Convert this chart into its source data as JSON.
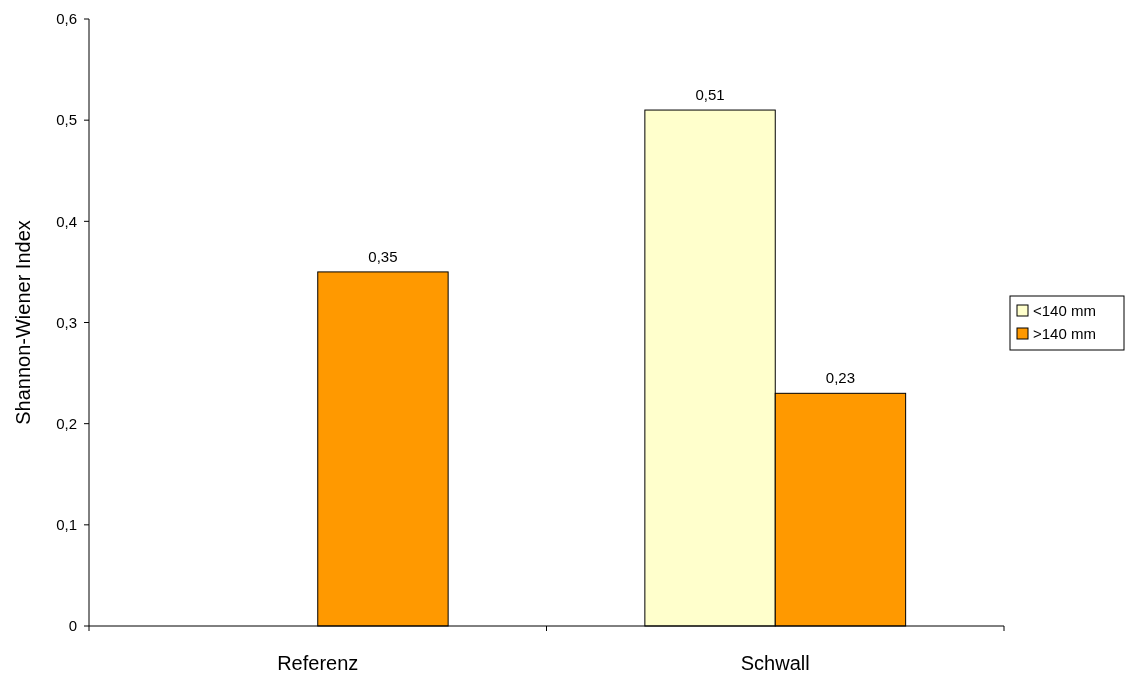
{
  "chart_data": {
    "type": "bar",
    "ylabel": "Shannon-Wiener Index",
    "categories": [
      "Referenz",
      "Schwall"
    ],
    "series": [
      {
        "name": "<140 mm",
        "color": "#ffffcc",
        "values": [
          null,
          0.51
        ],
        "value_labels": [
          null,
          "0,51"
        ]
      },
      {
        "name": ">140 mm",
        "color": "#ff9900",
        "values": [
          0.35,
          0.23
        ],
        "value_labels": [
          "0,35",
          "0,23"
        ]
      }
    ],
    "ylim": [
      0,
      0.6
    ],
    "yticks": [
      0,
      {
        "value": 0.1,
        "label": "0,1"
      },
      {
        "value": 0.2,
        "label": "0,2"
      },
      {
        "value": 0.3,
        "label": "0,3"
      },
      {
        "value": 0.4,
        "label": "0,4"
      },
      {
        "value": 0.5,
        "label": "0,5"
      },
      {
        "value": 0.6,
        "label": "0,6"
      }
    ],
    "grid": false,
    "legend": "right"
  }
}
